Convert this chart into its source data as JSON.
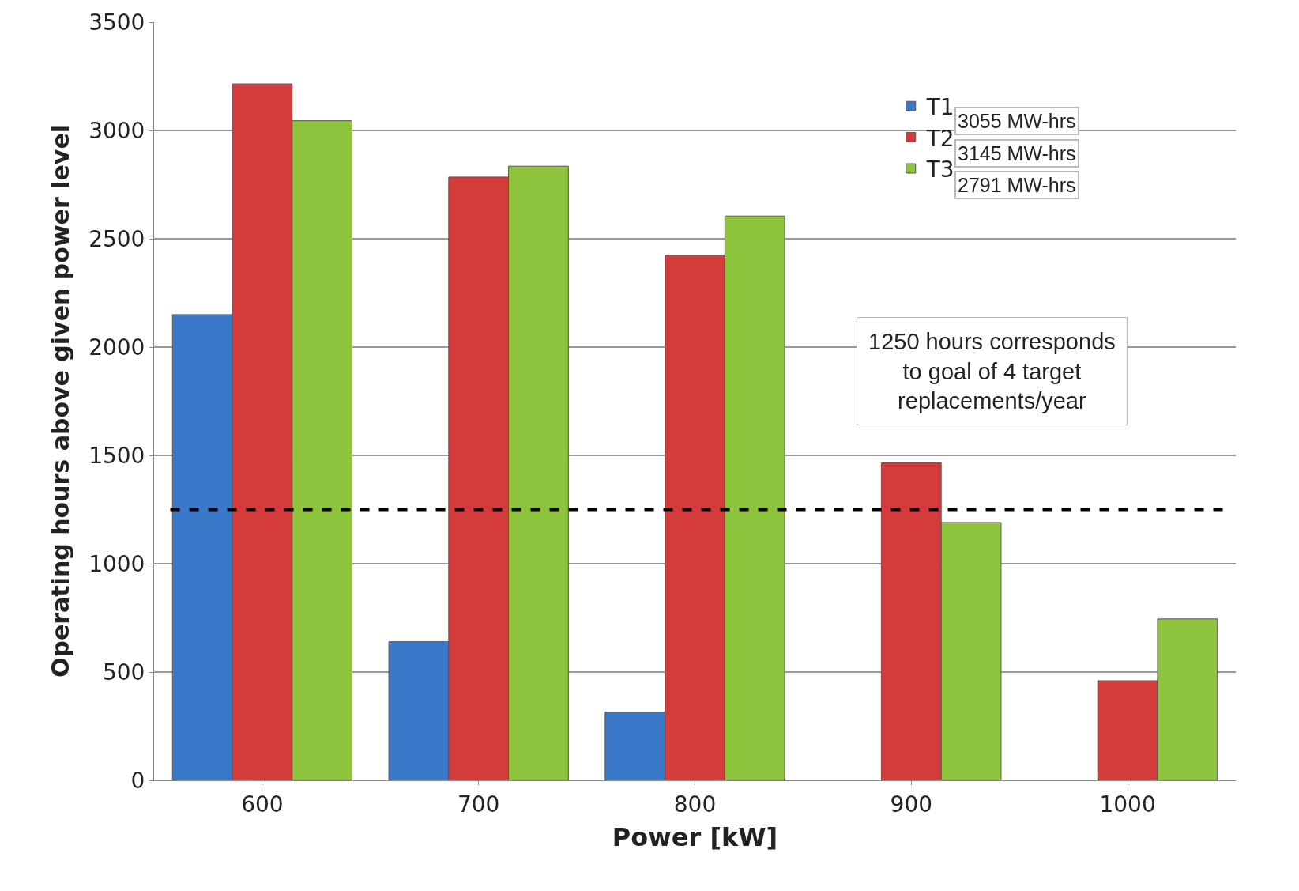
{
  "chart_data": {
    "type": "bar",
    "xlabel": "Power [kW]",
    "ylabel": "Operating hours above given power level",
    "categories": [
      "600",
      "700",
      "800",
      "900",
      "1000"
    ],
    "series": [
      {
        "name": "T1",
        "color": "#3a78c9",
        "values": [
          2150,
          640,
          315,
          null,
          null
        ]
      },
      {
        "name": "T2",
        "color": "#d43c3c",
        "values": [
          3215,
          2785,
          2425,
          1465,
          460
        ]
      },
      {
        "name": "T3",
        "color": "#8dc43c",
        "values": [
          3045,
          2835,
          2605,
          1190,
          745
        ]
      }
    ],
    "ylim": [
      0,
      3500
    ],
    "yticks": [
      0,
      500,
      1000,
      1500,
      2000,
      2500,
      3000,
      3500
    ],
    "grid": "y",
    "legend": "top right",
    "ref_lines": [
      {
        "axis": "y",
        "value": 1250,
        "color": "#000000",
        "line_style": "dashed"
      }
    ],
    "annotations": [
      "3055 MW-hrs",
      "3145 MW-hrs",
      "2791 MW-hrs",
      "1250 hours corresponds\nto goal of 4 target\nreplacements/year"
    ]
  }
}
